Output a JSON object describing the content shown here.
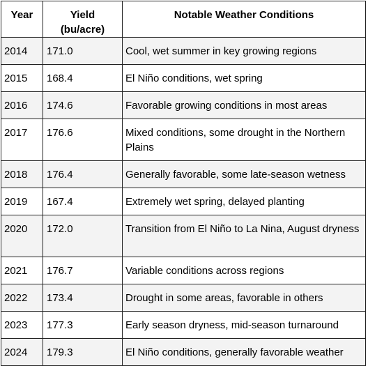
{
  "table": {
    "headers": {
      "year": "Year",
      "yield_line1": "Yield",
      "yield_line2": "(bu/acre)",
      "weather": "Notable Weather Conditions"
    },
    "rows": [
      {
        "year": "2014",
        "yield": "171.0",
        "weather": "Cool, wet summer in key growing regions"
      },
      {
        "year": "2015",
        "yield": "168.4",
        "weather": "El Niño conditions, wet spring"
      },
      {
        "year": "2016",
        "yield": "174.6",
        "weather": "Favorable growing conditions in most areas"
      },
      {
        "year": "2017",
        "yield": "176.6",
        "weather": "Mixed conditions, some drought in the Northern Plains"
      },
      {
        "year": "2018",
        "yield": "176.4",
        "weather": "Generally favorable, some late-season wetness"
      },
      {
        "year": "2019",
        "yield": "167.4",
        "weather": "Extremely wet spring, delayed planting"
      },
      {
        "year": "2020",
        "yield": "172.0",
        "weather": "Transition from El Niño to La Nina, August dryness"
      },
      {
        "year": "2021",
        "yield": "176.7",
        "weather": "Variable conditions across regions"
      },
      {
        "year": "2022",
        "yield": "173.4",
        "weather": "Drought in some areas, favorable in others"
      },
      {
        "year": "2023",
        "yield": "177.3",
        "weather": "Early season dryness, mid-season turnaround"
      },
      {
        "year": "2024",
        "yield": "179.3",
        "weather": "El Niño conditions, generally favorable weather"
      }
    ]
  }
}
